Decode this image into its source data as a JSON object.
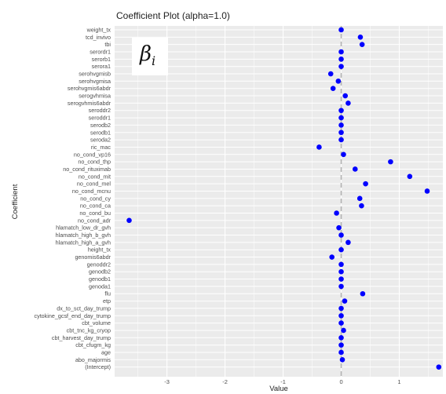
{
  "chart_data": {
    "type": "scatter",
    "title": "Coefficient Plot (alpha=1.0)",
    "xlabel": "Value",
    "ylabel": "Coefficient",
    "annotation": "β",
    "annotation_sub": "i",
    "xlim": [
      -3.9,
      1.75
    ],
    "xticks": [
      -3,
      -2,
      -1,
      0,
      1
    ],
    "reference_line_x": 0,
    "point_color": "#0000ff",
    "panel_color": "#ebebeb",
    "grid": true,
    "categories": [
      "weight_tx",
      "tcd_invivo",
      "tbi",
      "serordr1",
      "serorb1",
      "serora1",
      "serohvgmisb",
      "serohvgmisa",
      "serohvgmis6abdr",
      "serogvhmisa",
      "serogvhmis6abdr",
      "seroddr2",
      "seroddr1",
      "serodb2",
      "serodb1",
      "seroda2",
      "ric_mac",
      "no_cond_vp16",
      "no_cond_thp",
      "no_cond_rituximab",
      "no_cond_mit",
      "no_cond_mel",
      "no_cond_mcnu",
      "no_cond_cy",
      "no_cond_ca",
      "no_cond_bu",
      "no_cond_adr",
      "hlamatch_low_dr_gvh",
      "hlamatch_high_b_gvh",
      "hlamatch_high_a_gvh",
      "height_tx",
      "genomis6abdr",
      "genoddr2",
      "genodb2",
      "genodb1",
      "genoda1",
      "flu",
      "etp",
      "dx_to_sct_day_trump",
      "cytokine_gcsf_end_day_trump",
      "cbt_volume",
      "cbt_tnc_kg_cryop",
      "cbt_harvest_day_trump",
      "cbt_cfugm_kg",
      "age",
      "abo_majormis",
      "(Intercept)"
    ],
    "values": [
      0.0,
      0.33,
      0.36,
      0.0,
      0.0,
      0.0,
      -0.18,
      -0.05,
      -0.14,
      0.07,
      0.12,
      0.0,
      0.0,
      0.0,
      0.0,
      0.0,
      -0.38,
      0.04,
      0.85,
      0.24,
      1.18,
      0.42,
      1.48,
      0.32,
      0.35,
      -0.08,
      -3.65,
      -0.04,
      0.0,
      0.12,
      0.0,
      -0.16,
      0.0,
      0.0,
      0.0,
      0.0,
      0.37,
      0.06,
      0.0,
      0.0,
      0.0,
      0.04,
      0.0,
      0.0,
      0.0,
      0.02,
      1.68
    ]
  }
}
